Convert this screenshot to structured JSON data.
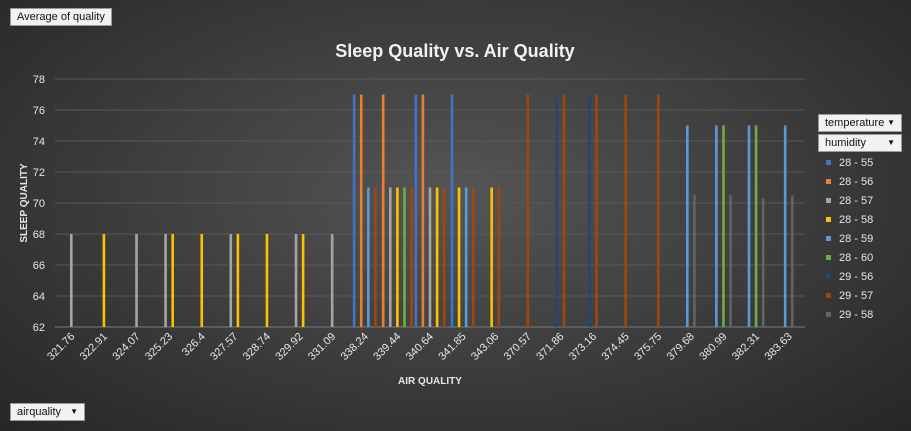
{
  "pivot": {
    "values_button": "Average of quality",
    "axis_field_button": "airquality",
    "legend_field_buttons": [
      "temperature",
      "humidity"
    ]
  },
  "chart_data": {
    "type": "bar",
    "title": "Sleep Quality  vs.  Air Quality",
    "xlabel": "AIR QUALITY",
    "ylabel": "SLEEP QUALITY",
    "ylim": [
      62,
      78
    ],
    "yticks": [
      62,
      64,
      66,
      68,
      70,
      72,
      74,
      76,
      78
    ],
    "grid": true,
    "legend_position": "right",
    "categories": [
      "321.76",
      "322.91",
      "324.07",
      "325.23",
      "326.4",
      "327.57",
      "328.74",
      "329.92",
      "331.09",
      "338.24",
      "339.44",
      "340.64",
      "341.85",
      "343.06",
      "370.57",
      "371.86",
      "373.16",
      "374.45",
      "375.75",
      "379.68",
      "380.99",
      "382.31",
      "383.63"
    ],
    "series": [
      {
        "name": "28 - 55",
        "color": "#4472c4",
        "values": [
          null,
          null,
          null,
          null,
          null,
          null,
          null,
          null,
          null,
          77,
          null,
          77,
          77,
          null,
          null,
          null,
          null,
          null,
          null,
          null,
          null,
          null,
          null
        ]
      },
      {
        "name": "28 - 56",
        "color": "#ed7d31",
        "values": [
          null,
          null,
          null,
          null,
          null,
          null,
          null,
          null,
          null,
          77,
          77,
          77,
          null,
          null,
          null,
          null,
          null,
          null,
          null,
          null,
          null,
          null,
          null
        ]
      },
      {
        "name": "28 - 57",
        "color": "#a5a5a5",
        "values": [
          68,
          null,
          68,
          68,
          null,
          68,
          null,
          68,
          68,
          null,
          71,
          71,
          null,
          null,
          null,
          null,
          null,
          null,
          null,
          null,
          null,
          null,
          null
        ]
      },
      {
        "name": "28 - 58",
        "color": "#ffc000",
        "values": [
          null,
          68,
          null,
          68,
          68,
          68,
          68,
          68,
          null,
          null,
          71,
          71,
          71,
          71,
          null,
          null,
          null,
          null,
          null,
          null,
          null,
          null,
          null
        ]
      },
      {
        "name": "28 - 59",
        "color": "#5b9bd5",
        "values": [
          null,
          null,
          null,
          null,
          null,
          null,
          null,
          null,
          null,
          71,
          null,
          null,
          71,
          null,
          null,
          null,
          null,
          null,
          null,
          75,
          75,
          75,
          75
        ]
      },
      {
        "name": "28 - 60",
        "color": "#70ad47",
        "values": [
          null,
          null,
          null,
          null,
          null,
          null,
          null,
          null,
          null,
          null,
          71,
          null,
          null,
          null,
          null,
          null,
          null,
          null,
          null,
          null,
          75,
          75,
          null
        ]
      },
      {
        "name": "29 - 56",
        "color": "#264478",
        "values": [
          null,
          null,
          null,
          null,
          null,
          null,
          null,
          null,
          null,
          null,
          null,
          null,
          null,
          null,
          null,
          77,
          77,
          null,
          null,
          null,
          null,
          null,
          null
        ]
      },
      {
        "name": "29 - 57",
        "color": "#9e480e",
        "values": [
          null,
          null,
          null,
          null,
          null,
          null,
          null,
          null,
          null,
          71,
          71,
          71,
          71,
          71,
          77,
          77,
          77,
          77,
          77,
          null,
          null,
          null,
          null
        ]
      },
      {
        "name": "29 - 58",
        "color": "#636363",
        "values": [
          null,
          null,
          null,
          null,
          null,
          null,
          null,
          null,
          null,
          null,
          null,
          null,
          null,
          null,
          null,
          null,
          null,
          null,
          null,
          70.5,
          70.5,
          70.3,
          70.5
        ]
      }
    ]
  }
}
